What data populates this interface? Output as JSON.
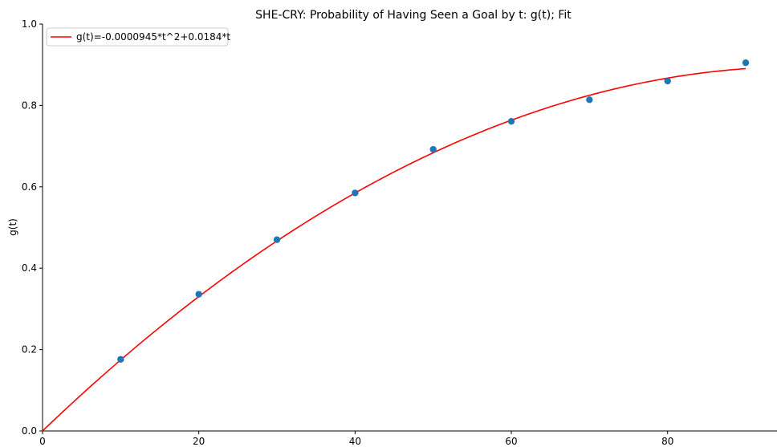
{
  "chart_data": {
    "type": "scatter",
    "title": "SHE-CRY: Probability of Having Seen a Goal by t: g(t); Fit",
    "xlabel": "",
    "ylabel": "g(t)",
    "xlim": [
      0,
      94
    ],
    "ylim": [
      0.0,
      1.0
    ],
    "xticks": [
      0,
      20,
      40,
      60,
      80
    ],
    "yticks": [
      0.0,
      0.2,
      0.4,
      0.6,
      0.8,
      1.0
    ],
    "xtick_labels": [
      "0",
      "20",
      "40",
      "60",
      "80"
    ],
    "ytick_labels": [
      "0.0",
      "0.2",
      "0.4",
      "0.6",
      "0.8",
      "1.0"
    ],
    "grid": false,
    "legend_position": "top-left",
    "series": [
      {
        "kind": "scatter",
        "color": "#1f77b4",
        "x": [
          10,
          20,
          30,
          40,
          50,
          60,
          70,
          80,
          90
        ],
        "y": [
          0.176,
          0.336,
          0.47,
          0.585,
          0.692,
          0.761,
          0.814,
          0.86,
          0.905
        ]
      },
      {
        "kind": "line",
        "name": "g(t)=-0.0000945*t^2+0.0184*t",
        "color": "#ff0000",
        "coefficients": {
          "a": -9.45e-05,
          "b": 0.0184
        },
        "x_range": [
          0,
          90
        ]
      }
    ]
  }
}
